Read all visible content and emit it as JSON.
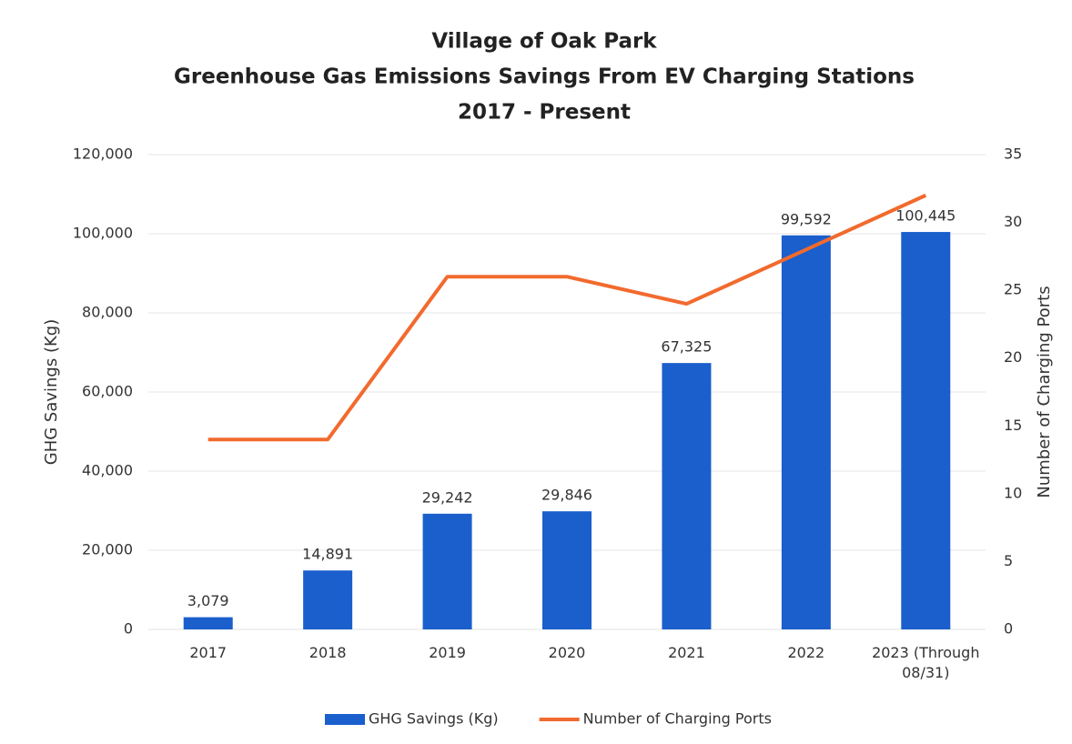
{
  "chart_data": {
    "type": "bar_line",
    "title": [
      "Village of Oak Park",
      "Greenhouse Gas Emissions Savings From EV Charging Stations",
      "2017 - Present"
    ],
    "y_label": "GHG Savings (Kg)",
    "y2_label": "Number of Charging Ports",
    "categories": [
      "2017",
      "2018",
      "2019",
      "2020",
      "2021",
      "2022",
      "2023 (Through 08/31)"
    ],
    "series": [
      {
        "name": "GHG Savings (Kg)",
        "type": "bar",
        "color": "#1a5fcc",
        "values": [
          3079,
          14891,
          29242,
          29846,
          67325,
          99592,
          100445
        ],
        "value_labels": [
          "3,079",
          "14,891",
          "29,242",
          "29,846",
          "67,325",
          "99,592",
          "100,445"
        ]
      },
      {
        "name": "Number of Charging Ports",
        "type": "line",
        "axis": "y2",
        "color": "#f26a2e",
        "values": [
          14,
          14,
          26,
          26,
          24,
          28,
          32
        ]
      }
    ],
    "ylim": [
      0,
      120000
    ],
    "yticks": [
      0,
      {
        "value": 20000,
        "label": "20,000"
      },
      {
        "value": 40000,
        "label": "40,000"
      },
      {
        "value": 60000,
        "label": "60,000"
      },
      {
        "value": 80000,
        "label": "80,000"
      },
      {
        "value": 100000,
        "label": "100,000"
      },
      {
        "value": 120000,
        "label": "120,000"
      }
    ],
    "y2lim": [
      0,
      35
    ],
    "y2ticks": [
      0,
      5,
      10,
      15,
      20,
      25,
      30,
      35
    ],
    "grid": true,
    "legend": "bottom"
  }
}
